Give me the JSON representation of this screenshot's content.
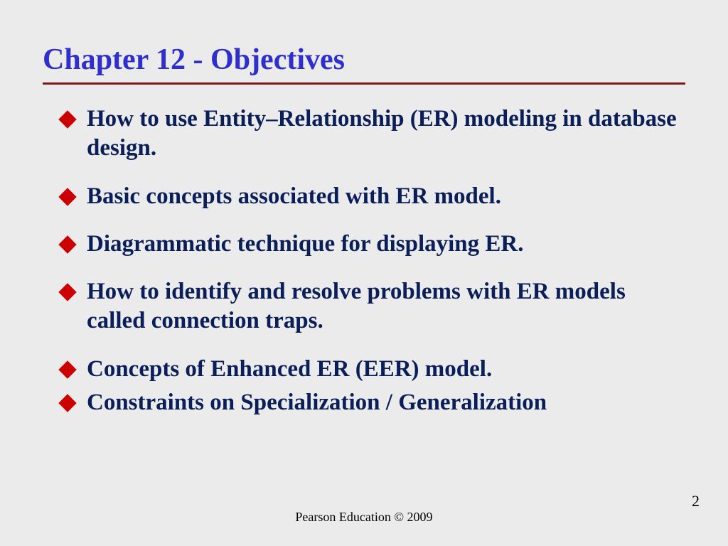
{
  "slide": {
    "title": "Chapter 12 - Objectives",
    "title_color": "#2f2fcf",
    "title_fontsize": 42,
    "underline_color": "#7a1a1a",
    "background_color": "#ebebeb",
    "bullet_diamond_color": "#cc0000",
    "bullet_text_color": "#0a1e5a",
    "bullet_fontsize": 33,
    "bullets": [
      {
        "text": "How to use Entity–Relationship (ER) modeling in database design.",
        "spacing": "normal"
      },
      {
        "text": "Basic concepts associated with ER model.",
        "spacing": "normal"
      },
      {
        "text": "Diagrammatic technique for displaying ER.",
        "spacing": "normal"
      },
      {
        "text": "How to identify and resolve problems with ER models called connection traps.",
        "spacing": "normal"
      },
      {
        "text": "Concepts of Enhanced ER (EER) model.",
        "spacing": "tight"
      },
      {
        "text": "Constraints on Specialization / Generalization",
        "spacing": "normal"
      }
    ],
    "footer": "Pearson Education © 2009",
    "page_number": "2"
  }
}
